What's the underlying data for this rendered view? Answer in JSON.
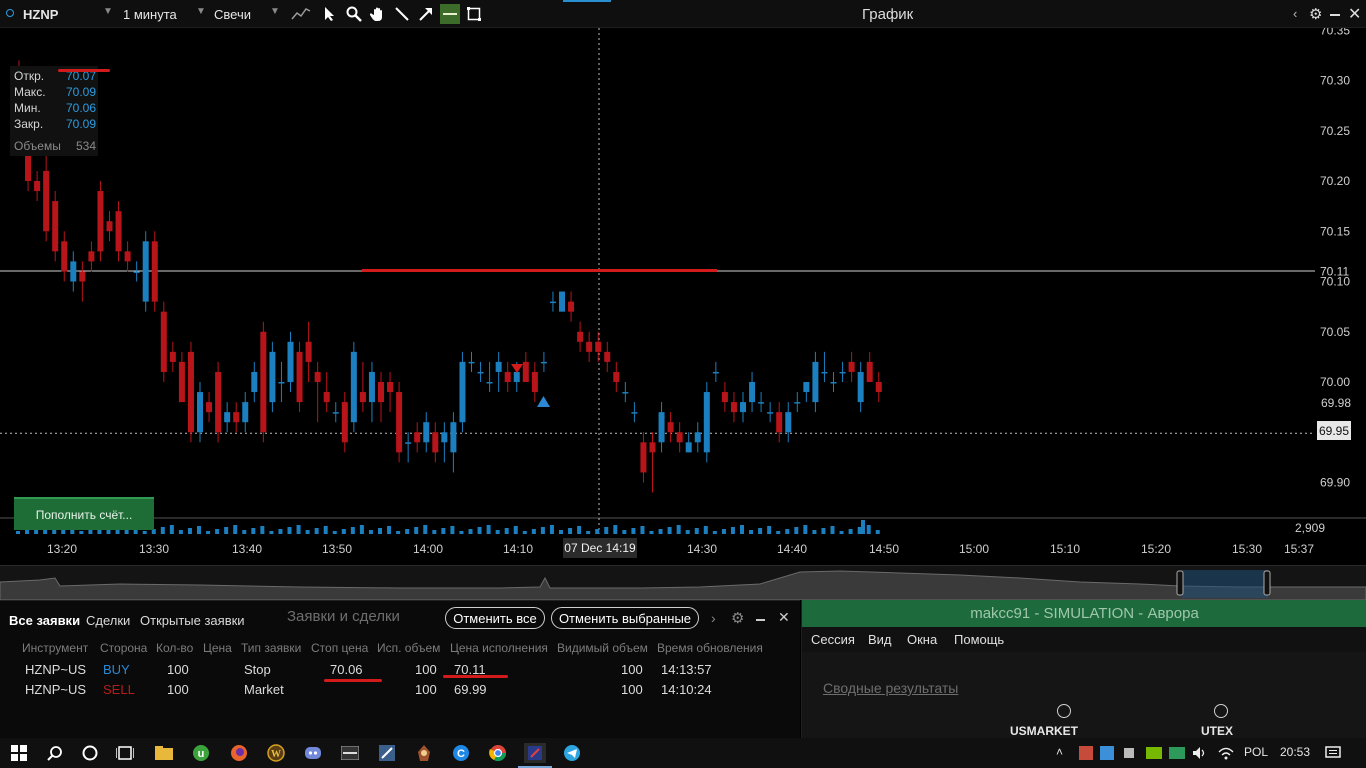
{
  "toolbar": {
    "symbol": "HZNP",
    "interval": "1 минута",
    "chart_type": "Свечи",
    "title": "График",
    "tools": [
      "indicators-icon",
      "cursor-icon",
      "zoom-icon",
      "hand-icon",
      "line-icon",
      "arrow-icon",
      "horizontal-line-icon",
      "rectangle-icon"
    ]
  },
  "ohlc": {
    "open_label": "Откр.",
    "open": "70.07",
    "high_label": "Макс.",
    "high": "70.09",
    "low_label": "Мин.",
    "low": "70.06",
    "close_label": "Закр.",
    "close": "70.09",
    "volume_label": "Объемы",
    "volume": "534"
  },
  "chart": {
    "deposit_button": "Пополнить счёт...",
    "crosshair_time": "07 Dec 14:19",
    "crosshair_price": "70.11",
    "last_price": "69.95",
    "red_price": "69.98",
    "volume_max": "2,909",
    "price_ticks": [
      "70.35",
      "70.30",
      "70.25",
      "70.20",
      "70.15",
      "70.10",
      "70.05",
      "70.00",
      "69.90"
    ],
    "time_ticks": [
      "13:20",
      "13:30",
      "13:40",
      "13:50",
      "14:00",
      "14:10",
      "14:30",
      "14:40",
      "14:50",
      "15:00",
      "15:10",
      "15:20",
      "15:30",
      "15:37"
    ]
  },
  "chart_data": {
    "type": "candlestick",
    "symbol": "HZNP",
    "interval": "1 минута",
    "ylim": [
      69.86,
      70.36
    ],
    "x_start": "13:17",
    "x_step_minutes": 1,
    "candles": [
      [
        70.3,
        70.32,
        70.25,
        70.26
      ],
      [
        70.26,
        70.27,
        70.19,
        70.2
      ],
      [
        70.2,
        70.21,
        70.18,
        70.19
      ],
      [
        70.21,
        70.23,
        70.14,
        70.15
      ],
      [
        70.18,
        70.19,
        70.12,
        70.13
      ],
      [
        70.14,
        70.15,
        70.1,
        70.11
      ],
      [
        70.1,
        70.13,
        70.09,
        70.12
      ],
      [
        70.11,
        70.12,
        70.08,
        70.1
      ],
      [
        70.13,
        70.14,
        70.11,
        70.12
      ],
      [
        70.19,
        70.2,
        70.12,
        70.13
      ],
      [
        70.16,
        70.17,
        70.14,
        70.15
      ],
      [
        70.17,
        70.18,
        70.12,
        70.13
      ],
      [
        70.13,
        70.14,
        70.11,
        70.12
      ],
      [
        70.11,
        70.12,
        70.1,
        70.11
      ],
      [
        70.08,
        70.15,
        70.07,
        70.14
      ],
      [
        70.14,
        70.15,
        70.07,
        70.08
      ],
      [
        70.07,
        70.08,
        70.0,
        70.01
      ],
      [
        70.03,
        70.04,
        70.01,
        70.02
      ],
      [
        70.02,
        70.03,
        69.98,
        69.98
      ],
      [
        70.03,
        70.04,
        69.94,
        69.95
      ],
      [
        69.95,
        70.0,
        69.94,
        69.99
      ],
      [
        69.98,
        69.99,
        69.96,
        69.97
      ],
      [
        70.01,
        70.02,
        69.94,
        69.95
      ],
      [
        69.96,
        69.98,
        69.95,
        69.97
      ],
      [
        69.97,
        69.98,
        69.95,
        69.96
      ],
      [
        69.96,
        69.99,
        69.95,
        69.98
      ],
      [
        69.99,
        70.02,
        69.98,
        70.01
      ],
      [
        70.05,
        70.06,
        69.94,
        69.95
      ],
      [
        69.98,
        70.04,
        69.97,
        70.03
      ],
      [
        70.0,
        70.02,
        69.98,
        70.0
      ],
      [
        70.0,
        70.05,
        69.99,
        70.04
      ],
      [
        70.03,
        70.04,
        69.97,
        69.98
      ],
      [
        70.04,
        70.06,
        70.0,
        70.02
      ],
      [
        70.01,
        70.02,
        69.96,
        70.0
      ],
      [
        69.99,
        70.01,
        69.97,
        69.98
      ],
      [
        69.97,
        69.98,
        69.96,
        69.97
      ],
      [
        69.98,
        69.99,
        69.93,
        69.94
      ],
      [
        69.96,
        70.04,
        69.95,
        70.03
      ],
      [
        69.99,
        70.02,
        69.97,
        69.98
      ],
      [
        69.98,
        70.02,
        69.96,
        70.01
      ],
      [
        70.0,
        70.01,
        69.96,
        69.98
      ],
      [
        70.0,
        70.01,
        69.97,
        69.99
      ],
      [
        69.99,
        70.0,
        69.92,
        69.93
      ],
      [
        69.94,
        69.95,
        69.92,
        69.94
      ],
      [
        69.95,
        69.96,
        69.93,
        69.94
      ],
      [
        69.94,
        69.97,
        69.93,
        69.96
      ],
      [
        69.95,
        69.96,
        69.92,
        69.93
      ],
      [
        69.94,
        69.96,
        69.92,
        69.95
      ],
      [
        69.93,
        69.97,
        69.91,
        69.96
      ],
      [
        69.96,
        70.03,
        69.95,
        70.02
      ],
      [
        70.02,
        70.03,
        70.01,
        70.02
      ],
      [
        70.01,
        70.02,
        70.0,
        70.01
      ],
      [
        70.0,
        70.02,
        69.99,
        70.0
      ],
      [
        70.01,
        70.03,
        69.99,
        70.02
      ],
      [
        70.01,
        70.02,
        69.99,
        70.0
      ],
      [
        70.0,
        70.02,
        69.99,
        70.01
      ],
      [
        70.02,
        70.03,
        70.0,
        70.0
      ],
      [
        70.01,
        70.02,
        69.98,
        69.99
      ],
      [
        70.02,
        70.03,
        70.01,
        70.02
      ],
      [
        70.08,
        70.09,
        70.07,
        70.08
      ],
      [
        70.07,
        70.09,
        70.07,
        70.09
      ],
      [
        70.08,
        70.09,
        70.06,
        70.07
      ],
      [
        70.05,
        70.06,
        70.03,
        70.04
      ],
      [
        70.04,
        70.05,
        70.02,
        70.03
      ],
      [
        70.04,
        70.05,
        70.02,
        70.03
      ],
      [
        70.03,
        70.04,
        70.01,
        70.02
      ],
      [
        70.01,
        70.02,
        69.99,
        70.0
      ],
      [
        69.99,
        70.0,
        69.98,
        69.99
      ],
      [
        69.97,
        69.98,
        69.96,
        69.97
      ],
      [
        69.94,
        69.95,
        69.9,
        69.91
      ],
      [
        69.94,
        69.95,
        69.89,
        69.93
      ],
      [
        69.94,
        69.98,
        69.93,
        69.97
      ],
      [
        69.96,
        69.97,
        69.94,
        69.95
      ],
      [
        69.95,
        69.96,
        69.93,
        69.94
      ],
      [
        69.93,
        69.95,
        69.93,
        69.94
      ],
      [
        69.94,
        69.96,
        69.93,
        69.95
      ],
      [
        69.93,
        70.0,
        69.92,
        69.99
      ],
      [
        70.01,
        70.02,
        70.0,
        70.01
      ],
      [
        69.99,
        70.0,
        69.97,
        69.98
      ],
      [
        69.98,
        69.99,
        69.96,
        69.97
      ],
      [
        69.97,
        69.99,
        69.96,
        69.98
      ],
      [
        69.98,
        70.01,
        69.97,
        70.0
      ],
      [
        69.98,
        69.99,
        69.97,
        69.98
      ],
      [
        69.97,
        69.98,
        69.96,
        69.97
      ],
      [
        69.97,
        69.98,
        69.94,
        69.95
      ],
      [
        69.95,
        69.98,
        69.94,
        69.97
      ],
      [
        69.98,
        69.99,
        69.97,
        69.98
      ],
      [
        69.99,
        70.0,
        69.98,
        70.0
      ],
      [
        69.98,
        70.03,
        69.97,
        70.02
      ],
      [
        70.01,
        70.03,
        70.0,
        70.01
      ],
      [
        70.0,
        70.01,
        69.99,
        70.0
      ],
      [
        70.01,
        70.02,
        70.0,
        70.01
      ],
      [
        70.02,
        70.03,
        70.0,
        70.01
      ],
      [
        69.98,
        70.02,
        69.97,
        70.01
      ],
      [
        70.02,
        70.03,
        70.0,
        70.0
      ],
      [
        70.0,
        70.01,
        69.98,
        69.99
      ]
    ],
    "order_lines": [
      {
        "price": 70.11,
        "label": "Stop"
      }
    ],
    "markers": [
      {
        "type": "sell",
        "price": 70.03
      },
      {
        "type": "buy",
        "price": 69.99
      }
    ]
  },
  "orders": {
    "title": "Заявки и сделки",
    "tabs": [
      "Все заявки",
      "Сделки",
      "Открытые заявки"
    ],
    "cancel_all": "Отменить все",
    "cancel_selected": "Отменить выбранные",
    "columns": [
      "Инструмент",
      "Сторона",
      "Кол-во",
      "Цена",
      "Тип заявки",
      "Стоп цена",
      "Исп. объем",
      "Цена исполнения",
      "Видимый объем",
      "Время обновления"
    ],
    "rows": [
      {
        "instrument": "HZNP~US",
        "side": "BUY",
        "qty": "100",
        "price": "",
        "type": "Stop",
        "stop_price": "70.06",
        "filled": "100",
        "exec_price": "70.11",
        "visible": "100",
        "time": "14:13:57"
      },
      {
        "instrument": "HZNP~US",
        "side": "SELL",
        "qty": "100",
        "price": "",
        "type": "Market",
        "stop_price": "",
        "filled": "100",
        "exec_price": "69.99",
        "visible": "100",
        "time": "14:10:24"
      }
    ]
  },
  "rpanel": {
    "title": "makcc91 - SIMULATION - Аврора",
    "menu": [
      "Сессия",
      "Вид",
      "Окна",
      "Помощь"
    ],
    "link": "Сводные результаты",
    "markets": [
      "USMARKET",
      "UTEX"
    ]
  },
  "taskbar": {
    "lang": "POL",
    "time": "20:53"
  },
  "colors": {
    "up": "#1c7fbf",
    "down": "#b8151b",
    "accent_green": "#1e6d37",
    "order_line": "#d31b1b"
  }
}
